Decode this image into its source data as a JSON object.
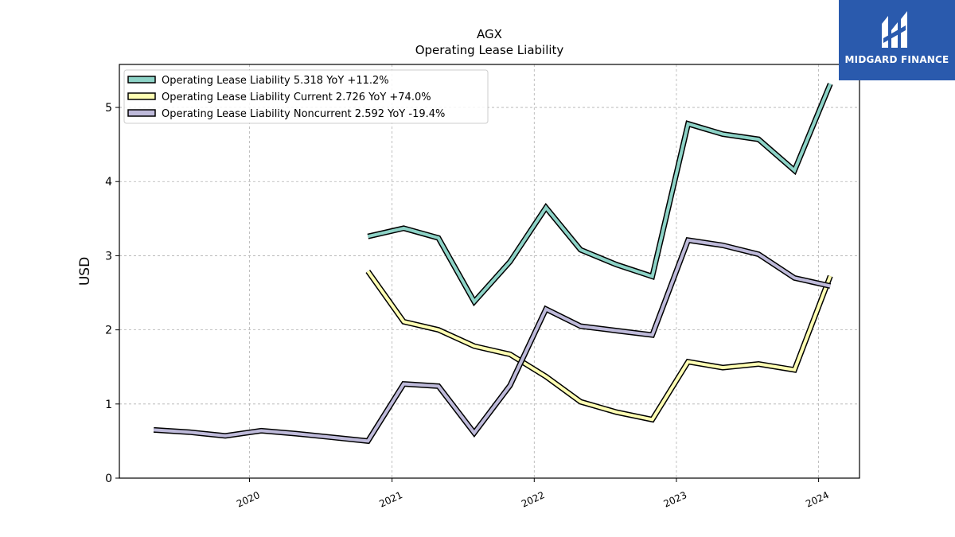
{
  "chart_data": {
    "type": "line",
    "title": "AGX",
    "subtitle": "Operating Lease Liability",
    "ylabel": "USD",
    "xlabel": "",
    "ylim": [
      0,
      5.58
    ],
    "xlim": [
      "2019-02-01",
      "2024-04-15"
    ],
    "yticks": [
      0,
      1,
      2,
      3,
      4,
      5
    ],
    "xticks": [
      "2020",
      "2021",
      "2022",
      "2023",
      "2024"
    ],
    "grid": true,
    "legend_position": "top-left",
    "series": [
      {
        "name": "Operating Lease Liability",
        "legend_label": "Operating Lease Liability  5.318 YoY +11.2%",
        "color": "#8dd3c7",
        "points": [
          [
            "2020-10-31",
            3.26
          ],
          [
            "2021-01-31",
            3.37
          ],
          [
            "2021-04-30",
            3.24
          ],
          [
            "2021-07-31",
            2.38
          ],
          [
            "2021-10-31",
            2.92
          ],
          [
            "2022-01-31",
            3.65
          ],
          [
            "2022-04-30",
            3.08
          ],
          [
            "2022-07-31",
            2.88
          ],
          [
            "2022-10-31",
            2.72
          ],
          [
            "2023-01-31",
            4.78
          ],
          [
            "2023-04-30",
            4.64
          ],
          [
            "2023-07-31",
            4.57
          ],
          [
            "2023-10-31",
            4.15
          ],
          [
            "2024-01-31",
            5.318
          ]
        ]
      },
      {
        "name": "Operating Lease Liability Current",
        "legend_label": "Operating Lease Liability Current  2.726 YoY +74.0%",
        "color": "#ffffb3",
        "points": [
          [
            "2020-10-31",
            2.79
          ],
          [
            "2021-01-31",
            2.11
          ],
          [
            "2021-04-30",
            2.0
          ],
          [
            "2021-07-31",
            1.78
          ],
          [
            "2021-10-31",
            1.67
          ],
          [
            "2022-01-31",
            1.37
          ],
          [
            "2022-04-30",
            1.03
          ],
          [
            "2022-07-31",
            0.89
          ],
          [
            "2022-10-31",
            0.79
          ],
          [
            "2023-01-31",
            1.57
          ],
          [
            "2023-04-30",
            1.49
          ],
          [
            "2023-07-31",
            1.54
          ],
          [
            "2023-10-31",
            1.46
          ],
          [
            "2024-01-31",
            2.726
          ]
        ]
      },
      {
        "name": "Operating Lease Liability Noncurrent",
        "legend_label": "Operating Lease Liability Noncurrent  2.592 YoY -19.4%",
        "color": "#bebada",
        "points": [
          [
            "2019-04-30",
            0.65
          ],
          [
            "2019-07-31",
            0.62
          ],
          [
            "2019-10-31",
            0.57
          ],
          [
            "2020-01-31",
            0.64
          ],
          [
            "2020-04-30",
            0.6
          ],
          [
            "2020-07-31",
            0.55
          ],
          [
            "2020-10-31",
            0.5
          ],
          [
            "2021-01-31",
            1.27
          ],
          [
            "2021-04-30",
            1.24
          ],
          [
            "2021-07-31",
            0.61
          ],
          [
            "2021-10-31",
            1.25
          ],
          [
            "2022-01-31",
            2.28
          ],
          [
            "2022-04-30",
            2.05
          ],
          [
            "2022-07-31",
            1.99
          ],
          [
            "2022-10-31",
            1.93
          ],
          [
            "2023-01-31",
            3.21
          ],
          [
            "2023-04-30",
            3.14
          ],
          [
            "2023-07-31",
            3.02
          ],
          [
            "2023-10-31",
            2.7
          ],
          [
            "2024-01-31",
            2.592
          ]
        ]
      }
    ]
  },
  "logo": {
    "name": "MIDGARD FINANCE",
    "color": "#2a5aad"
  }
}
